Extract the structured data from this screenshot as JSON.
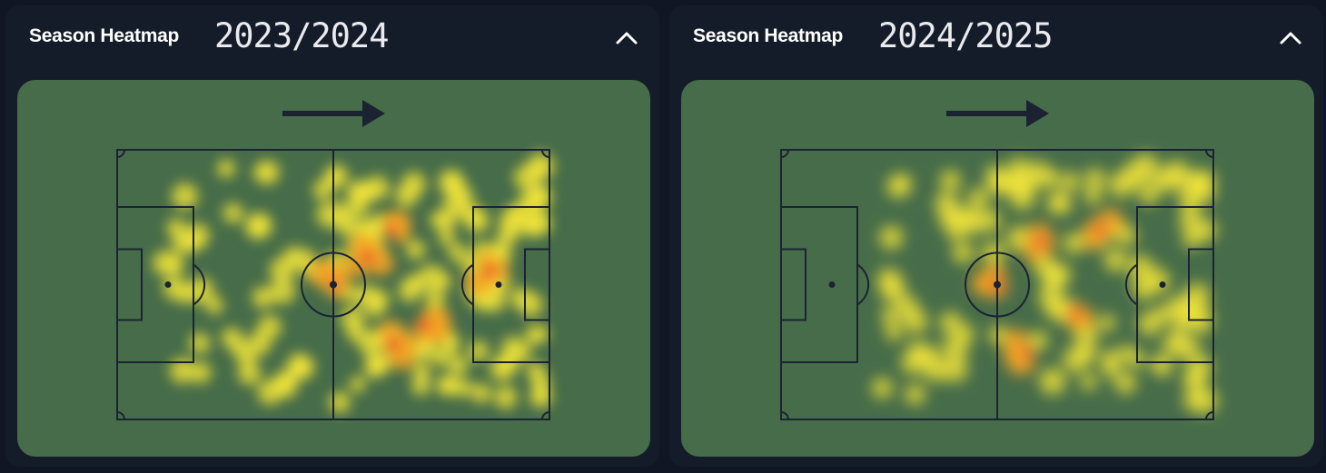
{
  "cards": [
    {
      "label": "Season Heatmap",
      "season": "2023/2024",
      "collapse_icon": "chevron-up-icon",
      "direction_icon": "arrow-right-icon",
      "heatmap_seed": 7,
      "heat_points": 140
    },
    {
      "label": "Season Heatmap",
      "season": "2024/2025",
      "collapse_icon": "chevron-up-icon",
      "direction_icon": "arrow-right-icon",
      "heatmap_seed": 23,
      "heat_points": 110
    }
  ],
  "colors": {
    "background": "#101623",
    "card": "#151c29",
    "pitch": "#466c4a",
    "lines": "#1b2333",
    "heat_low": "#f2e63a",
    "heat_mid": "#f6a623",
    "heat_high": "#e8342f"
  }
}
